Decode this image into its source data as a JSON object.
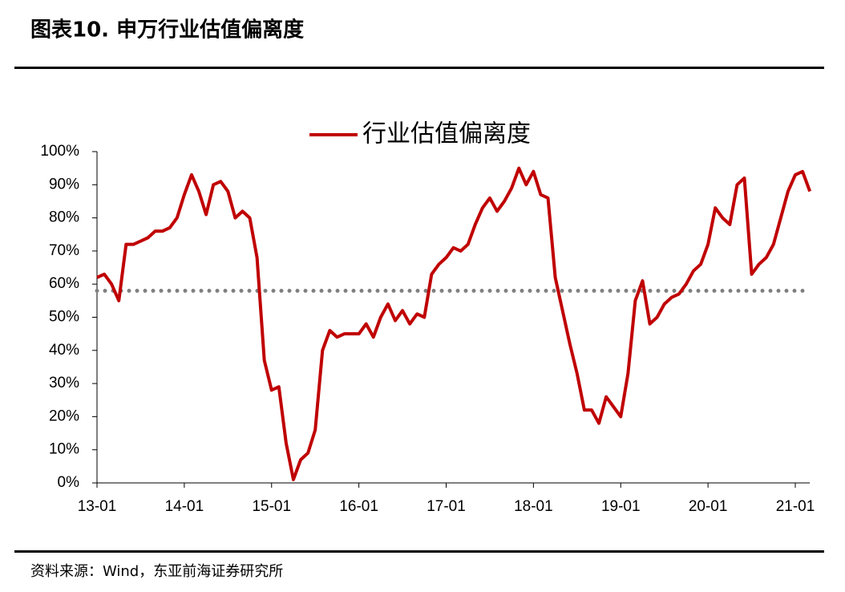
{
  "header": {
    "title": "图表10.  申万行业估值偏离度"
  },
  "chart_data": {
    "type": "line",
    "x": [
      "13-01",
      "13-02",
      "13-03",
      "13-04",
      "13-05",
      "13-06",
      "13-07",
      "13-08",
      "13-09",
      "13-10",
      "13-11",
      "13-12",
      "14-01",
      "14-02",
      "14-03",
      "14-04",
      "14-05",
      "14-06",
      "14-07",
      "14-08",
      "14-09",
      "14-10",
      "14-11",
      "14-12",
      "15-01",
      "15-02",
      "15-03",
      "15-04",
      "15-05",
      "15-06",
      "15-07",
      "15-08",
      "15-09",
      "15-10",
      "15-11",
      "15-12",
      "16-01",
      "16-02",
      "16-03",
      "16-04",
      "16-05",
      "16-06",
      "16-07",
      "16-08",
      "16-09",
      "16-10",
      "16-11",
      "16-12",
      "17-01",
      "17-02",
      "17-03",
      "17-04",
      "17-05",
      "17-06",
      "17-07",
      "17-08",
      "17-09",
      "17-10",
      "17-11",
      "17-12",
      "18-01",
      "18-02",
      "18-03",
      "18-04",
      "18-05",
      "18-06",
      "18-07",
      "18-08",
      "18-09",
      "18-10",
      "18-11",
      "18-12",
      "19-01",
      "19-02",
      "19-03",
      "19-04",
      "19-05",
      "19-06",
      "19-07",
      "19-08",
      "19-09",
      "19-10",
      "19-11",
      "19-12",
      "20-01",
      "20-02",
      "20-03",
      "20-04",
      "20-05",
      "20-06",
      "20-07",
      "20-08",
      "20-09",
      "20-10",
      "20-11",
      "20-12",
      "21-01",
      "21-02",
      "21-03"
    ],
    "series": [
      {
        "name": "行业估值偏离度",
        "color": "#c00000",
        "values": [
          62,
          63,
          60,
          55,
          72,
          72,
          73,
          74,
          76,
          76,
          77,
          80,
          87,
          93,
          88,
          81,
          90,
          91,
          88,
          80,
          82,
          80,
          68,
          37,
          28,
          29,
          12,
          1,
          7,
          9,
          16,
          40,
          46,
          44,
          45,
          45,
          45,
          48,
          44,
          50,
          54,
          49,
          52,
          48,
          51,
          50,
          63,
          66,
          68,
          71,
          70,
          72,
          78,
          83,
          86,
          82,
          85,
          89,
          95,
          90,
          94,
          87,
          86,
          62,
          52,
          42,
          33,
          22,
          22,
          18,
          26,
          23,
          20,
          33,
          55,
          61,
          48,
          50,
          54,
          56,
          57,
          60,
          64,
          66,
          72,
          83,
          80,
          78,
          90,
          92,
          63,
          66,
          68,
          72,
          80,
          88,
          93,
          94,
          88
        ]
      }
    ],
    "reference_line": {
      "value": 58,
      "color": "#808080"
    },
    "ylim": [
      0,
      100
    ],
    "yticks": [
      {
        "value": 0,
        "label": "0%"
      },
      {
        "value": 10,
        "label": "10%"
      },
      {
        "value": 20,
        "label": "20%"
      },
      {
        "value": 30,
        "label": "30%"
      },
      {
        "value": 40,
        "label": "40%"
      },
      {
        "value": 50,
        "label": "50%"
      },
      {
        "value": 60,
        "label": "60%"
      },
      {
        "value": 70,
        "label": "70%"
      },
      {
        "value": 80,
        "label": "80%"
      },
      {
        "value": 90,
        "label": "90%"
      },
      {
        "value": 100,
        "label": "100%"
      }
    ],
    "xtick_every": 12,
    "legend": "top"
  },
  "footer": {
    "source": "资料来源：Wind，东亚前海证券研究所"
  }
}
